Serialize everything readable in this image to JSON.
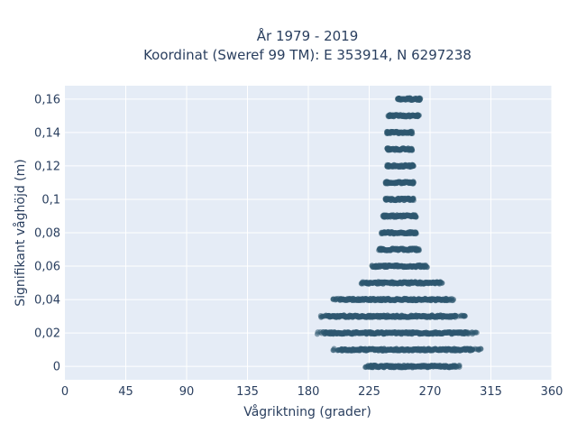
{
  "chart_data": {
    "type": "scatter",
    "title_line1": "År 1979 - 2019",
    "title_line2": "Koordinat (Sweref 99 TM): E 353914, N 6297238",
    "xlabel": "Vågriktning (grader)",
    "ylabel": "Signifikant våghöjd (m)",
    "xlim": [
      0,
      360
    ],
    "ylim": [
      -0.008,
      0.168
    ],
    "x_ticks": [
      0,
      45,
      90,
      135,
      180,
      225,
      270,
      315,
      360
    ],
    "y_ticks": [
      0,
      0.02,
      0.04,
      0.06,
      0.08,
      0.1,
      0.12,
      0.14,
      0.16
    ],
    "y_tick_labels": [
      "0",
      "0,02",
      "0,04",
      "0,06",
      "0,08",
      "0,1",
      "0,12",
      "0,14",
      "0,16"
    ],
    "grid": true,
    "marker_color": "#2e5770",
    "background_color": "#e5ecf6",
    "bands": [
      {
        "y": 0.0,
        "x_min": 222,
        "x_max": 292
      },
      {
        "y": 0.01,
        "x_min": 198,
        "x_max": 308
      },
      {
        "y": 0.02,
        "x_min": 185,
        "x_max": 305
      },
      {
        "y": 0.03,
        "x_min": 188,
        "x_max": 296
      },
      {
        "y": 0.04,
        "x_min": 198,
        "x_max": 288
      },
      {
        "y": 0.05,
        "x_min": 219,
        "x_max": 280
      },
      {
        "y": 0.06,
        "x_min": 227,
        "x_max": 268
      },
      {
        "y": 0.07,
        "x_min": 232,
        "x_max": 262
      },
      {
        "y": 0.08,
        "x_min": 234,
        "x_max": 260
      },
      {
        "y": 0.09,
        "x_min": 235,
        "x_max": 260
      },
      {
        "y": 0.1,
        "x_min": 237,
        "x_max": 258
      },
      {
        "y": 0.11,
        "x_min": 237,
        "x_max": 258
      },
      {
        "y": 0.12,
        "x_min": 238,
        "x_max": 258
      },
      {
        "y": 0.13,
        "x_min": 238,
        "x_max": 257
      },
      {
        "y": 0.14,
        "x_min": 238,
        "x_max": 257
      },
      {
        "y": 0.15,
        "x_min": 239,
        "x_max": 262
      },
      {
        "y": 0.16,
        "x_min": 246,
        "x_max": 263
      }
    ]
  }
}
